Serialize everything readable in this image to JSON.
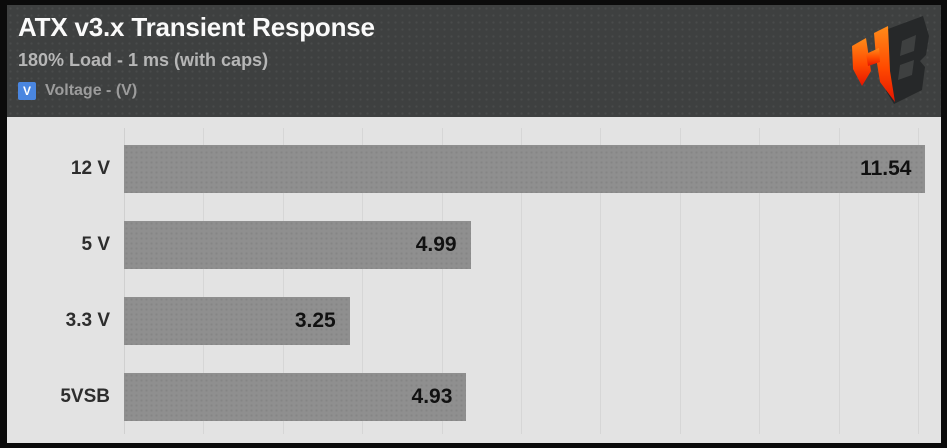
{
  "header": {
    "title": "ATX v3.x Transient Response",
    "subtitle": "180% Load - 1 ms (with caps)",
    "legend": {
      "symbol": "V",
      "label": "Voltage - (V)"
    },
    "logo": "hardware-busters-hb-monogram"
  },
  "colors": {
    "frame": "#0b0b0b",
    "header_bg": "#3e4040",
    "title": "#fafafa",
    "subtitle": "#b6b6b6",
    "legend_label": "#9c9c9c",
    "legend_symbol_bg": "#4a86e0",
    "plot_bg": "#e3e3e3",
    "gridline": "#d6d6d6",
    "bar": "#8f8f8f",
    "bar_value": "#111111",
    "category_label": "#2d2d2d",
    "logo_orange": "#ff8c1a",
    "logo_red": "#e51400",
    "logo_dark": "#2b2d2e"
  },
  "chart_data": {
    "type": "bar",
    "orientation": "horizontal",
    "title": "ATX v3.x Transient Response",
    "subtitle": "180% Load - 1 ms (with caps)",
    "series_name": "Voltage - (V)",
    "categories": [
      "12 V",
      "5 V",
      "3.3 V",
      "5VSB"
    ],
    "values": [
      11.54,
      4.99,
      3.25,
      4.93
    ],
    "value_labels": [
      "11.54",
      "4.99",
      "3.25",
      "4.93"
    ],
    "xlim": [
      0,
      11.72
    ],
    "grid": true,
    "gridline_count": 10,
    "gridline_spacing_pct": 9.755,
    "legend_position": "top-left",
    "value_label_position": "inside-end",
    "axis_tick_labels_visible": false
  }
}
